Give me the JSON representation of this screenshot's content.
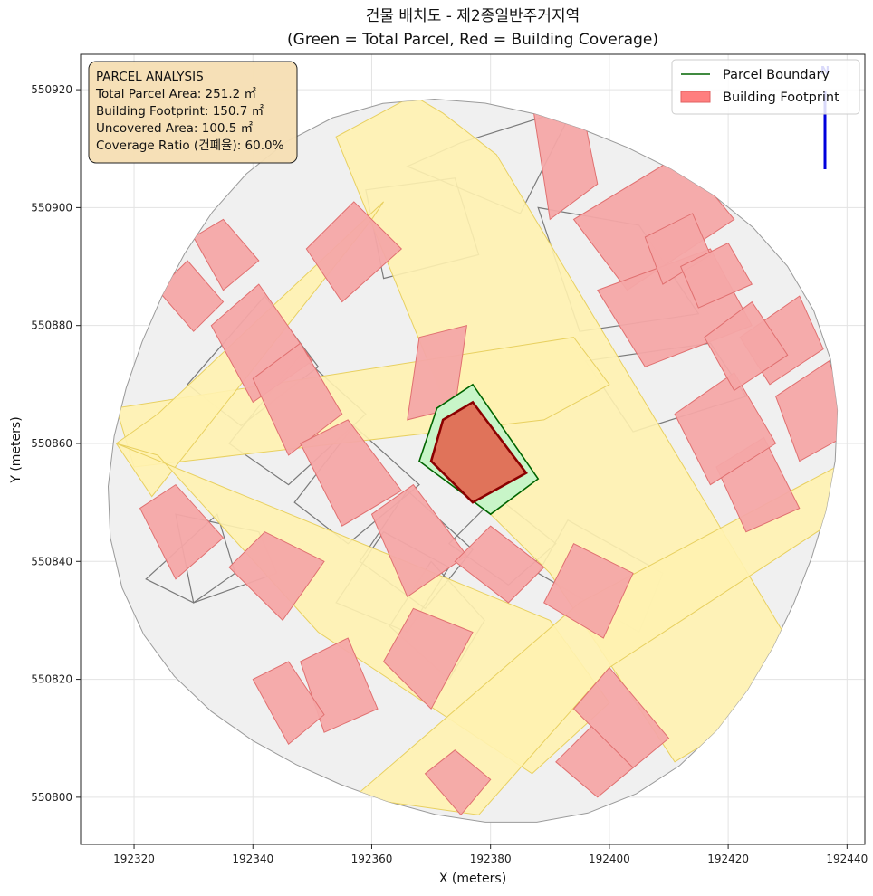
{
  "title_line1": "건물 배치도 - 제2종일반주거지역",
  "title_line2": "(Green = Total Parcel, Red = Building Coverage)",
  "info_box": {
    "heading": "PARCEL ANALYSIS",
    "total_parcel_area": "Total Parcel Area: 251.2 ㎡",
    "building_footprint": "Building Footprint: 150.7 ㎡",
    "uncovered_area": "Uncovered Area: 100.5 ㎡",
    "coverage_ratio": "Coverage Ratio (건폐율): 60.0%"
  },
  "legend": {
    "placement": "top-right",
    "parcel_boundary": "Parcel Boundary",
    "building_footprint": "Building Footprint"
  },
  "north_arrow_label": "N",
  "colors": {
    "parcel_fill": "#c8f5c8",
    "parcel_edge": "#006400",
    "building_fill": "#e0735a",
    "building_edge": "#8b0000",
    "context_building": "#f4a6a6",
    "road": "#fff2b0",
    "lot": "#f0f0f0"
  },
  "chart_data": {
    "type": "map",
    "xlabel": "X (meters)",
    "ylabel": "Y (meters)",
    "xlim": [
      192311,
      192443
    ],
    "ylim": [
      550792,
      550926
    ],
    "xticks": [
      192320,
      192340,
      192360,
      192380,
      192400,
      192420,
      192440
    ],
    "yticks": [
      550800,
      550820,
      550840,
      550860,
      550880,
      550900,
      550920
    ],
    "grid": true,
    "target_parcel": [
      [
        192368,
        550857
      ],
      [
        192371,
        550866
      ],
      [
        192377,
        550870
      ],
      [
        192388,
        550854
      ],
      [
        192380,
        550848
      ]
    ],
    "target_building": [
      [
        192370,
        550857
      ],
      [
        192372,
        550864
      ],
      [
        192377,
        550867
      ],
      [
        192386,
        550855
      ],
      [
        192377,
        550850
      ]
    ],
    "roads": [
      [
        [
          192354,
          550912
        ],
        [
          192367,
          550919
        ],
        [
          192372,
          550916
        ],
        [
          192381,
          550909
        ],
        [
          192434,
          550820
        ],
        [
          192411,
          550806
        ],
        [
          192390,
          550838
        ],
        [
          192380,
          550848
        ]
      ],
      [
        [
          192317,
          550866
        ],
        [
          192320,
          550856
        ],
        [
          192389,
          550864
        ],
        [
          192400,
          550870
        ],
        [
          192394,
          550878
        ]
      ],
      [
        [
          192317,
          550860
        ],
        [
          192324,
          550865
        ],
        [
          192362,
          550901
        ],
        [
          192360,
          550898
        ],
        [
          192323,
          550851
        ]
      ],
      [
        [
          192317,
          550860
        ],
        [
          192390,
          550830
        ],
        [
          192400,
          550816
        ],
        [
          192387,
          550804
        ],
        [
          192351,
          550828
        ],
        [
          192324,
          550858
        ]
      ],
      [
        [
          192357,
          550800
        ],
        [
          192378,
          550797
        ],
        [
          192400,
          550822
        ],
        [
          192438,
          550847
        ],
        [
          192440,
          550857
        ],
        [
          192395,
          550833
        ],
        [
          192357,
          550800
        ]
      ]
    ],
    "lots": [
      [
        [
          192375,
          550911
        ],
        [
          192394,
          550917
        ],
        [
          192385,
          550899
        ],
        [
          192366,
          550907
        ]
      ],
      [
        [
          192388,
          550900
        ],
        [
          192405,
          550897
        ],
        [
          192415,
          550882
        ],
        [
          192395,
          550879
        ]
      ],
      [
        [
          192359,
          550903
        ],
        [
          192374,
          550905
        ],
        [
          192378,
          550892
        ],
        [
          192362,
          550888
        ]
      ],
      [
        [
          192396,
          550874
        ],
        [
          192417,
          550877
        ],
        [
          192423,
          550868
        ],
        [
          192404,
          550862
        ]
      ],
      [
        [
          192329,
          550870
        ],
        [
          192342,
          550885
        ],
        [
          192351,
          550873
        ],
        [
          192338,
          550863
        ]
      ],
      [
        [
          192336,
          550860
        ],
        [
          192348,
          550875
        ],
        [
          192359,
          550865
        ],
        [
          192346,
          550853
        ]
      ],
      [
        [
          192347,
          550850
        ],
        [
          192357,
          550863
        ],
        [
          192368,
          550853
        ],
        [
          192356,
          550843
        ]
      ],
      [
        [
          192358,
          550840
        ],
        [
          192366,
          550852
        ],
        [
          192377,
          550842
        ],
        [
          192369,
          550832
        ]
      ],
      [
        [
          192373,
          550843
        ],
        [
          192381,
          550851
        ],
        [
          192391,
          550843
        ],
        [
          192383,
          550836
        ]
      ],
      [
        [
          192388,
          550838
        ],
        [
          192393,
          550847
        ],
        [
          192409,
          550838
        ],
        [
          192405,
          550828
        ]
      ],
      [
        [
          192363,
          550829
        ],
        [
          192370,
          550840
        ],
        [
          192379,
          550830
        ],
        [
          192373,
          550820
        ]
      ],
      [
        [
          192327,
          550848
        ],
        [
          192341,
          550845
        ],
        [
          192344,
          550838
        ],
        [
          192330,
          550833
        ]
      ],
      [
        [
          192322,
          550837
        ],
        [
          192330,
          550833
        ],
        [
          192337,
          550838
        ],
        [
          192334,
          550848
        ]
      ],
      [
        [
          192354,
          550833
        ],
        [
          192362,
          550845
        ],
        [
          192373,
          550839
        ],
        [
          192366,
          550828
        ]
      ]
    ],
    "context_buildings": [
      [
        [
          192387,
          550918
        ],
        [
          192395,
          550919
        ],
        [
          192398,
          550904
        ],
        [
          192390,
          550898
        ]
      ],
      [
        [
          192394,
          550898
        ],
        [
          192412,
          550909
        ],
        [
          192421,
          550898
        ],
        [
          192403,
          550886
        ]
      ],
      [
        [
          192398,
          550886
        ],
        [
          192417,
          550893
        ],
        [
          192424,
          550880
        ],
        [
          192406,
          550873
        ]
      ],
      [
        [
          192349,
          550893
        ],
        [
          192357,
          550901
        ],
        [
          192365,
          550893
        ],
        [
          192355,
          550884
        ]
      ],
      [
        [
          192333,
          550880
        ],
        [
          192341,
          550887
        ],
        [
          192350,
          550874
        ],
        [
          192340,
          550867
        ]
      ],
      [
        [
          192340,
          550871
        ],
        [
          192348,
          550877
        ],
        [
          192355,
          550865
        ],
        [
          192346,
          550858
        ]
      ],
      [
        [
          192348,
          550860
        ],
        [
          192356,
          550864
        ],
        [
          192365,
          550852
        ],
        [
          192355,
          550846
        ]
      ],
      [
        [
          192360,
          550848
        ],
        [
          192367,
          550853
        ],
        [
          192376,
          550841
        ],
        [
          192366,
          550834
        ]
      ],
      [
        [
          192374,
          550840
        ],
        [
          192380,
          550846
        ],
        [
          192389,
          550839
        ],
        [
          192383,
          550833
        ]
      ],
      [
        [
          192389,
          550833
        ],
        [
          192394,
          550843
        ],
        [
          192404,
          550838
        ],
        [
          192399,
          550827
        ]
      ],
      [
        [
          192362,
          550823
        ],
        [
          192367,
          550832
        ],
        [
          192377,
          550828
        ],
        [
          192370,
          550815
        ]
      ],
      [
        [
          192348,
          550823
        ],
        [
          192356,
          550827
        ],
        [
          192361,
          550815
        ],
        [
          192352,
          550811
        ]
      ],
      [
        [
          192321,
          550849
        ],
        [
          192327,
          550853
        ],
        [
          192335,
          550844
        ],
        [
          192327,
          550837
        ]
      ],
      [
        [
          192336,
          550839
        ],
        [
          192342,
          550845
        ],
        [
          192352,
          550840
        ],
        [
          192345,
          550830
        ]
      ],
      [
        [
          192340,
          550820
        ],
        [
          192346,
          550823
        ],
        [
          192352,
          550814
        ],
        [
          192346,
          550809
        ]
      ],
      [
        [
          192394,
          550815
        ],
        [
          192400,
          550822
        ],
        [
          192410,
          550810
        ],
        [
          192404,
          550805
        ]
      ],
      [
        [
          192369,
          550804
        ],
        [
          192374,
          550808
        ],
        [
          192380,
          550803
        ],
        [
          192375,
          550797
        ]
      ],
      [
        [
          192391,
          550806
        ],
        [
          192397,
          550812
        ],
        [
          192404,
          550805
        ],
        [
          192398,
          550800
        ]
      ],
      [
        [
          192330,
          550895
        ],
        [
          192335,
          550898
        ],
        [
          192341,
          550891
        ],
        [
          192335,
          550886
        ]
      ],
      [
        [
          192324,
          550886
        ],
        [
          192329,
          550891
        ],
        [
          192335,
          550884
        ],
        [
          192330,
          550879
        ]
      ],
      [
        [
          192368,
          550878
        ],
        [
          192376,
          550880
        ],
        [
          192374,
          550866
        ],
        [
          192366,
          550864
        ]
      ],
      [
        [
          192422,
          550878
        ],
        [
          192432,
          550885
        ],
        [
          192436,
          550876
        ],
        [
          192427,
          550870
        ]
      ],
      [
        [
          192428,
          550868
        ],
        [
          192437,
          550874
        ],
        [
          192441,
          550862
        ],
        [
          192432,
          550857
        ]
      ],
      [
        [
          192418,
          550856
        ],
        [
          192426,
          550861
        ],
        [
          192432,
          550849
        ],
        [
          192423,
          550845
        ]
      ],
      [
        [
          192411,
          550865
        ],
        [
          192421,
          550872
        ],
        [
          192428,
          550860
        ],
        [
          192417,
          550853
        ]
      ],
      [
        [
          192406,
          550895
        ],
        [
          192414,
          550899
        ],
        [
          192417,
          550892
        ],
        [
          192409,
          550887
        ]
      ],
      [
        [
          192412,
          550890
        ],
        [
          192420,
          550894
        ],
        [
          192424,
          550887
        ],
        [
          192415,
          550883
        ]
      ],
      [
        [
          192416,
          550878
        ],
        [
          192424,
          550884
        ],
        [
          192430,
          550875
        ],
        [
          192421,
          550869
        ]
      ]
    ]
  }
}
